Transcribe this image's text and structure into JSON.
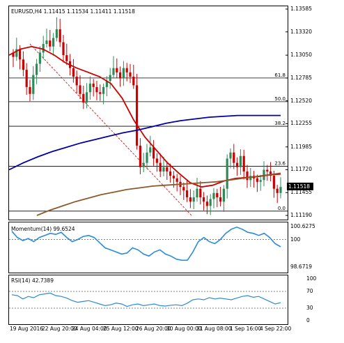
{
  "main": {
    "title": "EURUSD,H4  1.11415 1.11534 1.11411 1.11518",
    "price_axis": [
      "1.13585",
      "1.13320",
      "1.13050",
      "1.12785",
      "1.12520",
      "1.12255",
      "1.11985",
      "1.11720",
      "1.11455",
      "1.11190"
    ],
    "current_price": "1.11518",
    "fib_levels": [
      "61.8",
      "50.0",
      "38.2",
      "23.6",
      "0.0"
    ]
  },
  "momentum": {
    "title": "Momentum(14) 99.6524",
    "axis": [
      "100.6275",
      "100",
      "98.6719"
    ]
  },
  "rsi": {
    "title": "RSI(14) 42.7389",
    "axis": [
      "100",
      "70",
      "30",
      "0"
    ]
  },
  "time_axis": [
    "19 Aug 2016",
    "22 Aug 20:00",
    "24 Aug 04:00",
    "25 Aug 12:00",
    "26 Aug 20:00",
    "30 Aug 00:00",
    "31 Aug 08:00",
    "1 Sep 16:00",
    "4 Sep 22:00"
  ],
  "colors": {
    "bull": "#2e8b57",
    "bear": "#cc0000",
    "sma_fast": "#cc0000",
    "sma_mid": "#0000aa",
    "sma_slow": "#8b5a2b",
    "oscillator": "#2b8ad8"
  },
  "chart_data": [
    {
      "type": "candlestick",
      "title": "EURUSD,H4",
      "ohlc_last": {
        "open": 1.11415,
        "high": 1.11534,
        "low": 1.11411,
        "close": 1.11518
      },
      "ylim": [
        1.1119,
        1.13585
      ],
      "close_series": [
        1.1303,
        1.1312,
        1.13,
        1.1288,
        1.1268,
        1.126,
        1.1282,
        1.1295,
        1.1308,
        1.1318,
        1.1322,
        1.1315,
        1.1325,
        1.1335,
        1.132,
        1.1305,
        1.1298,
        1.129,
        1.128,
        1.127,
        1.126,
        1.125,
        1.1262,
        1.1272,
        1.1268,
        1.1262,
        1.126,
        1.1268,
        1.1275,
        1.1282,
        1.129,
        1.1285,
        1.1278,
        1.129,
        1.1285,
        1.128,
        1.127,
        1.12,
        1.1175,
        1.118,
        1.1192,
        1.1198,
        1.1185,
        1.118,
        1.117,
        1.1175,
        1.117,
        1.1165,
        1.1162,
        1.1158,
        1.1152,
        1.1148,
        1.114,
        1.1135,
        1.114,
        1.115,
        1.114,
        1.1135,
        1.113,
        1.1138,
        1.1145,
        1.114,
        1.1135,
        1.115,
        1.1185,
        1.1192,
        1.118,
        1.1175,
        1.1188,
        1.117,
        1.116,
        1.1165,
        1.1162,
        1.1158,
        1.116,
        1.1172,
        1.117,
        1.1165,
        1.115,
        1.1145,
        1.1152
      ],
      "moving_averages": [
        {
          "color": "#cc0000",
          "values": [
            1.1305,
            1.1312,
            1.1315,
            1.1312,
            1.1305,
            1.1296,
            1.129,
            1.1285,
            1.128,
            1.1272,
            1.1255,
            1.123,
            1.121,
            1.1195,
            1.118,
            1.1168,
            1.1157,
            1.1152,
            1.1154,
            1.1159,
            1.1162,
            1.1163,
            1.1164,
            1.1166,
            1.1167
          ]
        },
        {
          "color": "#0000aa",
          "values": [
            1.1172,
            1.118,
            1.1187,
            1.1193,
            1.1198,
            1.1203,
            1.1207,
            1.1211,
            1.1215,
            1.1218,
            1.1222,
            1.1226,
            1.1229,
            1.1231,
            1.1233,
            1.1234,
            1.1235,
            1.1235,
            1.1235,
            1.1235
          ]
        },
        {
          "color": "#8b5a2b",
          "values": [
            1.1119,
            1.1125,
            1.113,
            1.1135,
            1.1139,
            1.1143,
            1.1146,
            1.1149,
            1.1151,
            1.1153,
            1.1154,
            1.1155,
            1.1156,
            1.1157,
            1.1158,
            1.116,
            1.1162,
            1.1164,
            1.1166,
            1.1168
          ]
        }
      ],
      "fibonacci": [
        {
          "level": "61.8",
          "price": 1.12785
        },
        {
          "level": "50.0",
          "price": 1.1251
        },
        {
          "level": "38.2",
          "price": 1.12225
        },
        {
          "level": "23.6",
          "price": 1.1176
        },
        {
          "level": "0.0",
          "price": 1.1124
        }
      ],
      "grid": false
    },
    {
      "type": "line",
      "title": "Momentum(14) 99.6524",
      "ylim": [
        98.6719,
        100.6275
      ],
      "reference": 100,
      "values": [
        100.4,
        100.1,
        99.95,
        100.05,
        99.9,
        100.1,
        100.2,
        100.3,
        100.25,
        100.35,
        100.1,
        99.9,
        100.0,
        100.15,
        100.2,
        100.1,
        99.85,
        99.6,
        99.5,
        99.4,
        99.3,
        99.35,
        99.6,
        99.5,
        99.3,
        99.2,
        99.4,
        99.5,
        99.3,
        99.2,
        99.05,
        99.0,
        99.0,
        99.4,
        99.9,
        100.1,
        99.9,
        99.8,
        100.0,
        100.3,
        100.5,
        100.6,
        100.5,
        100.35,
        100.3,
        100.2,
        100.3,
        100.1,
        99.8,
        99.65
      ]
    },
    {
      "type": "line",
      "title": "RSI(14) 42.7389",
      "ylim": [
        0,
        100
      ],
      "levels": [
        70,
        30
      ],
      "values": [
        62,
        60,
        52,
        58,
        55,
        62,
        64,
        66,
        60,
        58,
        54,
        48,
        44,
        46,
        48,
        44,
        40,
        36,
        38,
        42,
        40,
        34,
        38,
        40,
        36,
        38,
        40,
        36,
        35,
        37,
        38,
        36,
        42,
        50,
        52,
        50,
        55,
        52,
        54,
        52,
        50,
        54,
        58,
        60,
        56,
        58,
        52,
        46,
        40,
        43
      ]
    }
  ]
}
